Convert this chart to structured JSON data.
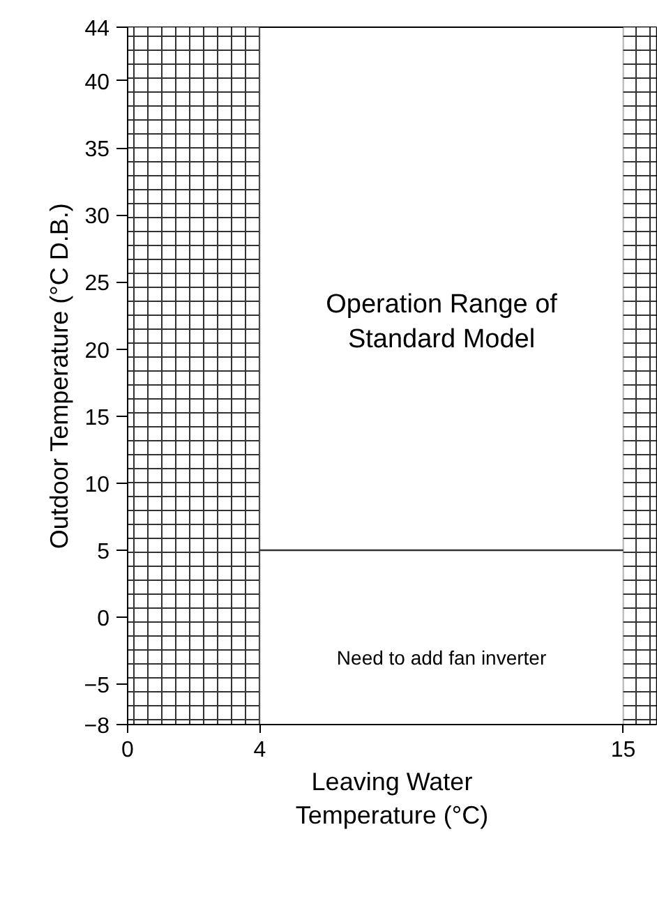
{
  "chart_data": {
    "type": "line",
    "xlabel": "Leaving Water Temperature (°C)",
    "ylabel": "Outdoor Temperature (°C D.B.)",
    "xlim": [
      0,
      16
    ],
    "ylim": [
      -8,
      44
    ],
    "xticks": [
      0,
      4,
      15
    ],
    "yticks": [
      {
        "value": -8,
        "label": "−8"
      },
      {
        "value": -5,
        "label": "−5"
      },
      0,
      5,
      10,
      15,
      20,
      25,
      30,
      35,
      40,
      44
    ],
    "grid": false,
    "x": [
      4,
      15
    ],
    "values": [
      5,
      5
    ],
    "color": "#333333",
    "bands": [
      {
        "axis": "x",
        "from": 0,
        "to": 4,
        "color": "#000000"
      },
      {
        "axis": "x",
        "from": 15,
        "to": 16,
        "color": "#000000"
      }
    ],
    "annotations": [
      "Operation Range of Standard Model",
      "Need to add fan inverter"
    ]
  }
}
